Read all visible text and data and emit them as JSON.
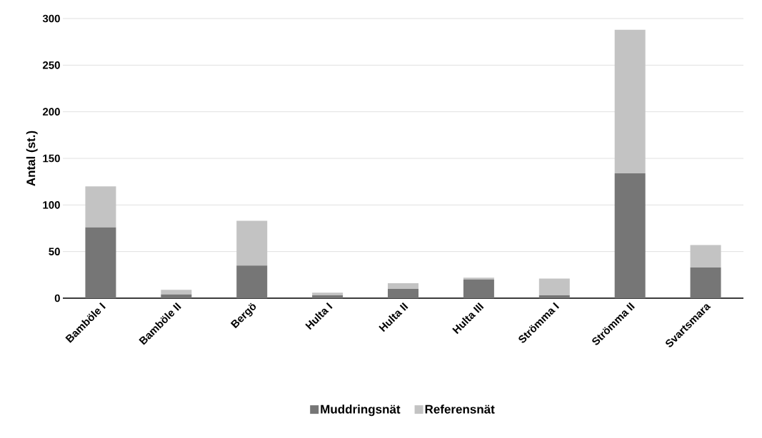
{
  "chart_data": {
    "type": "bar",
    "stacked": true,
    "ylabel": "Antal (st.)",
    "categories": [
      "Bamböle I",
      "Bamböle II",
      "Bergö",
      "Hulta I",
      "Hulta II",
      "Hulta III",
      "Strömma I",
      "Strömma II",
      "Svartsmara"
    ],
    "series": [
      {
        "name": "Muddringsnät",
        "color": "#767676",
        "values": [
          76,
          4,
          35,
          3,
          10,
          20,
          3,
          134,
          33
        ]
      },
      {
        "name": "Referensnät",
        "color": "#c3c3c3",
        "values": [
          44,
          5,
          48,
          3,
          6,
          2,
          18,
          154,
          24
        ]
      }
    ],
    "ylim": [
      0,
      300
    ],
    "yticks": [
      0,
      50,
      100,
      150,
      200,
      250,
      300
    ],
    "grid": "y",
    "legend": "bottom"
  }
}
